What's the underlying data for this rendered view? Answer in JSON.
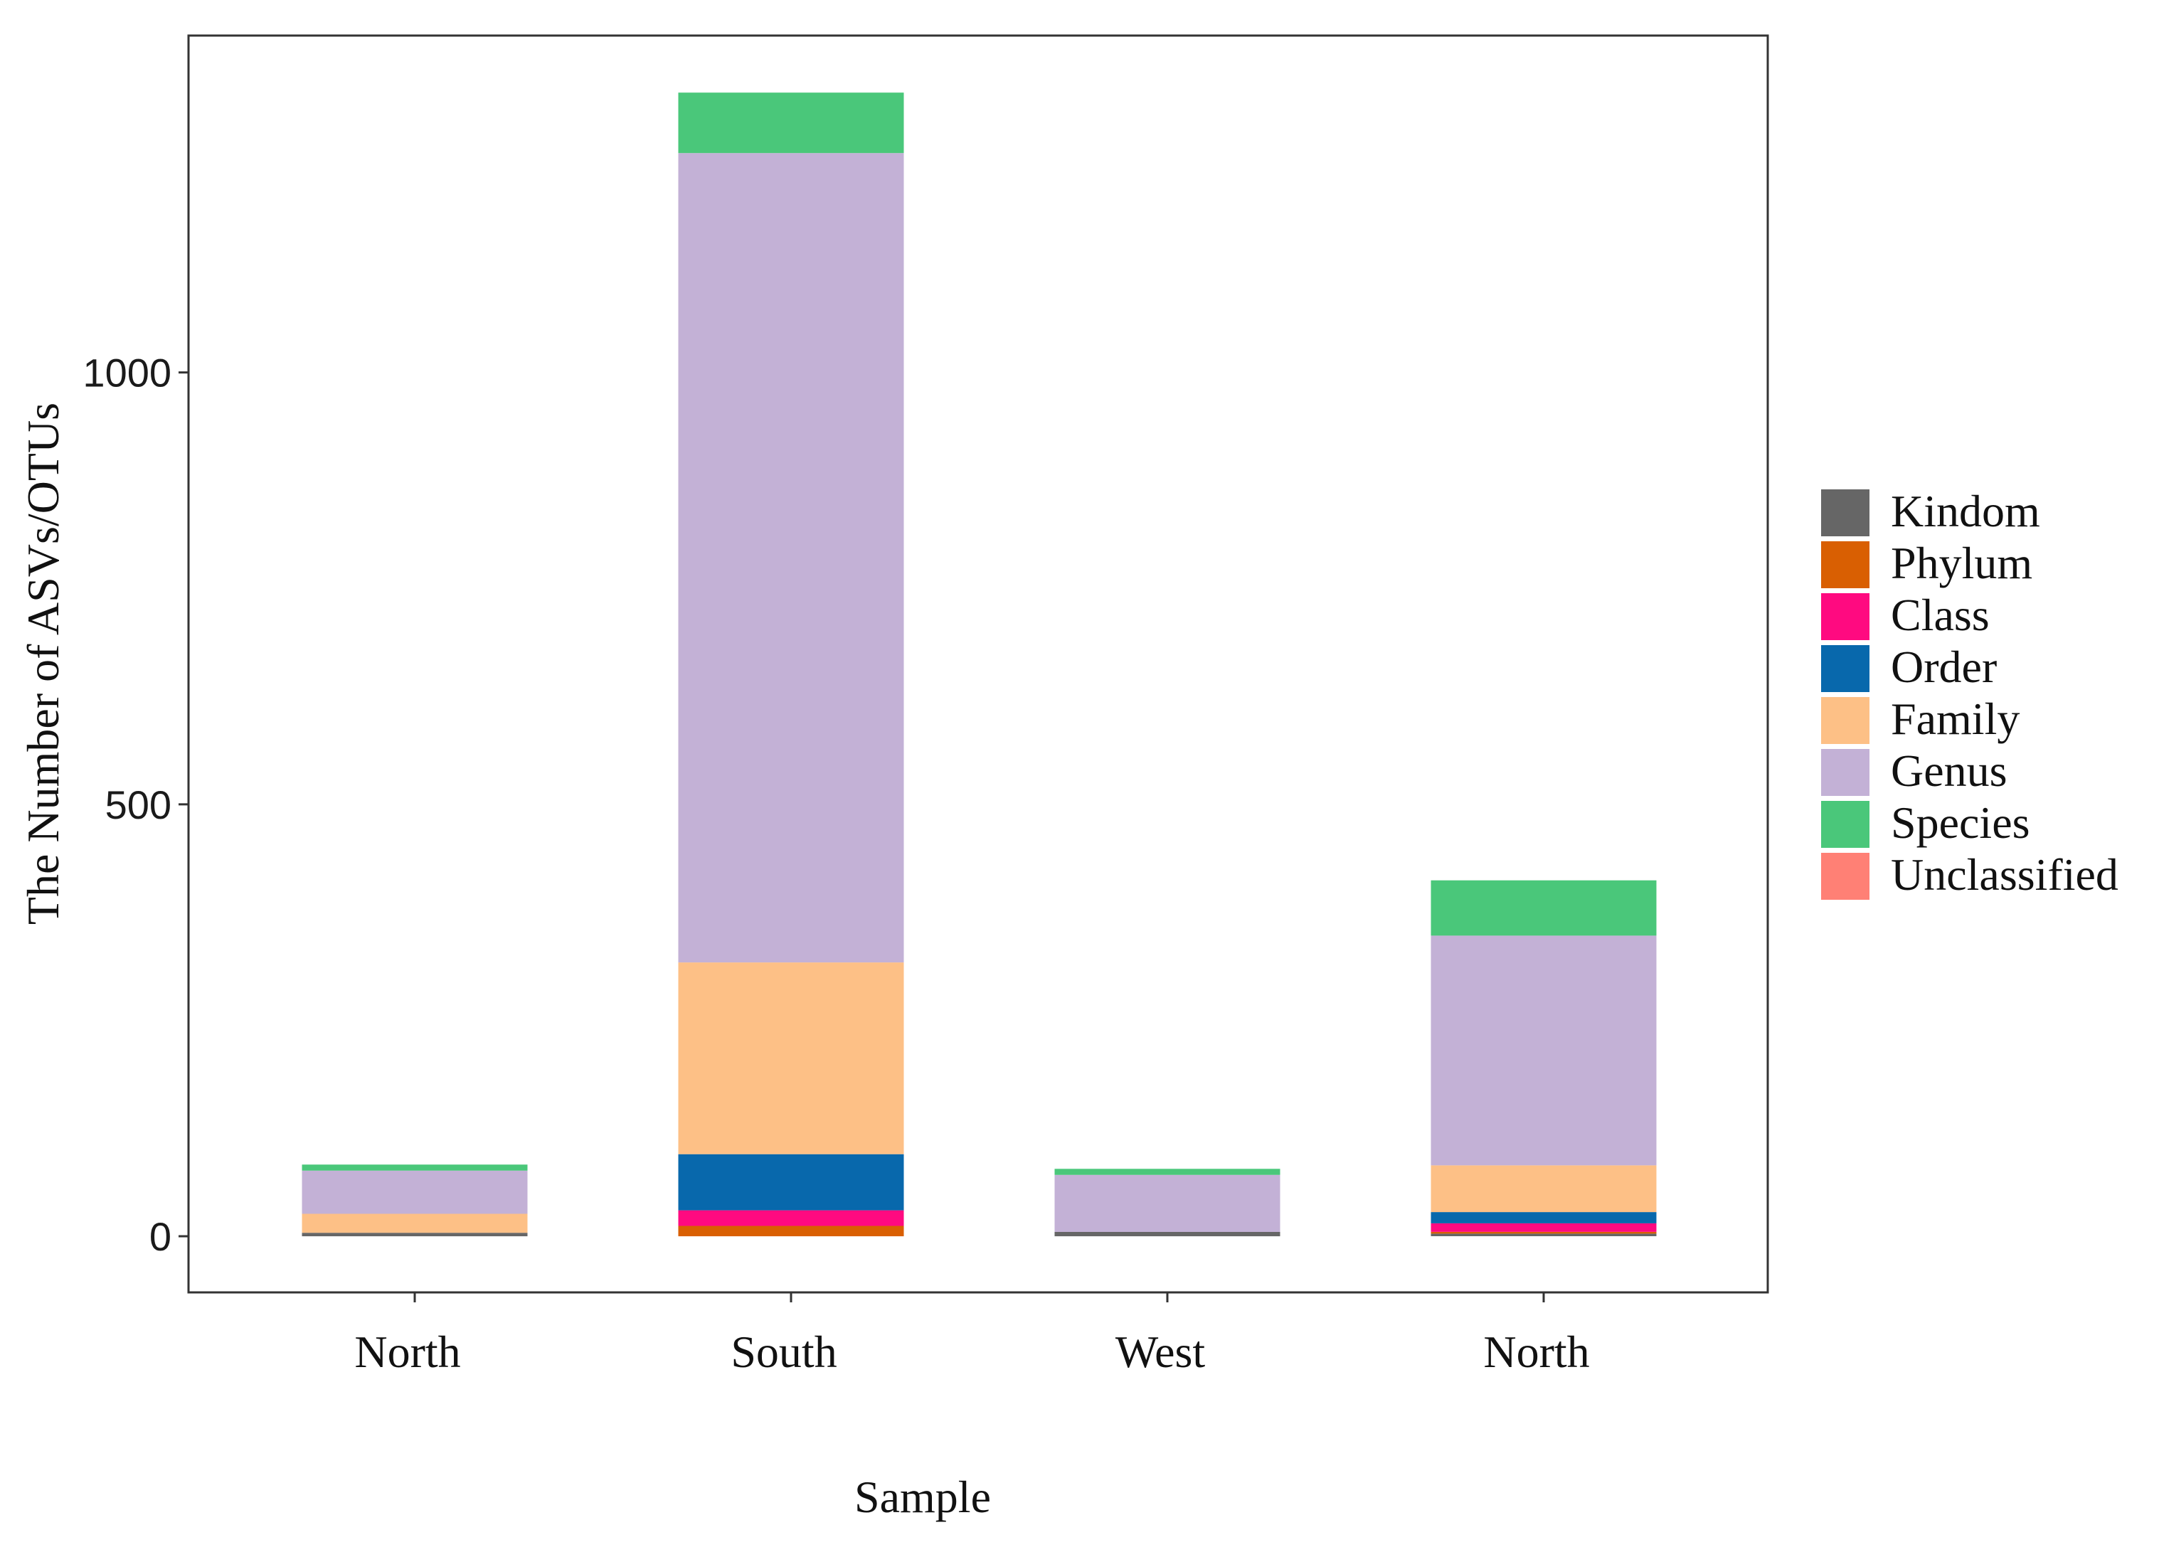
{
  "chart_data": {
    "type": "bar",
    "stacked": true,
    "xlabel": "Sample",
    "ylabel": "The Number of ASVs/OTUs",
    "ylim": [
      -65,
      1390
    ],
    "yticks": [
      0,
      500,
      1000
    ],
    "ytick_labels": [
      "0",
      "500",
      "1000"
    ],
    "grid": false,
    "legend_position": "right",
    "categories": [
      "North",
      "South",
      "West",
      "North"
    ],
    "series": [
      {
        "name": "Kindom",
        "color": "#666666",
        "values": [
          4,
          0,
          5,
          3
        ]
      },
      {
        "name": "Phylum",
        "color": "#D95F02",
        "values": [
          0,
          12,
          0,
          2
        ]
      },
      {
        "name": "Class",
        "color": "#FF0A80",
        "values": [
          0,
          18,
          0,
          10
        ]
      },
      {
        "name": "Order",
        "color": "#0868AC",
        "values": [
          0,
          65,
          0,
          13
        ]
      },
      {
        "name": "Family",
        "color": "#FDC086",
        "values": [
          22,
          222,
          0,
          54
        ]
      },
      {
        "name": "Genus",
        "color": "#C3B1D6",
        "values": [
          50,
          937,
          66,
          266
        ]
      },
      {
        "name": "Species",
        "color": "#4AC77A",
        "values": [
          7,
          70,
          7,
          64
        ]
      },
      {
        "name": "Unclassified",
        "color": "#FF8075",
        "values": [
          0,
          0,
          0,
          0
        ]
      }
    ]
  }
}
